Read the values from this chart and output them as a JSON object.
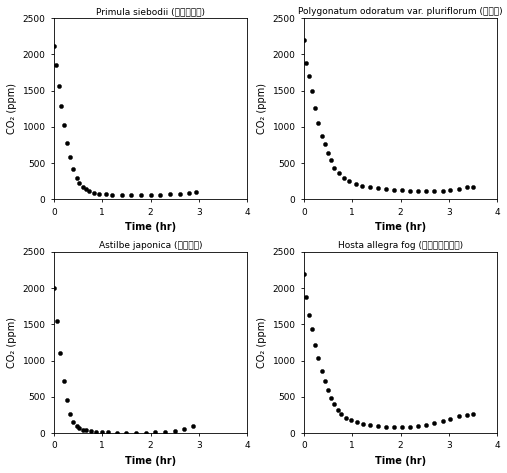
{
  "subplots": [
    {
      "title": "Primula siebodii (부주교잇이)",
      "xlabel": "Time (hr)",
      "ylabel": "CO₂ (ppm)",
      "xlim": [
        0,
        4.0
      ],
      "ylim": [
        0,
        2500
      ],
      "xticks": [
        0.0,
        1.0,
        2.0,
        3.0,
        4.0
      ],
      "yticks": [
        0,
        500,
        1000,
        1500,
        2000,
        2500
      ],
      "x": [
        0.0,
        0.05,
        0.1,
        0.15,
        0.2,
        0.27,
        0.33,
        0.4,
        0.47,
        0.53,
        0.6,
        0.67,
        0.73,
        0.83,
        0.93,
        1.07,
        1.2,
        1.4,
        1.6,
        1.8,
        2.0,
        2.2,
        2.4,
        2.6,
        2.8,
        2.95
      ],
      "y": [
        2120,
        1850,
        1560,
        1290,
        1020,
        780,
        590,
        420,
        290,
        230,
        175,
        145,
        115,
        95,
        80,
        70,
        60,
        55,
        55,
        55,
        60,
        65,
        70,
        75,
        90,
        105
      ]
    },
    {
      "title": "Polygonatum odoratum var. pluriflorum (둥굴레)",
      "xlabel": "Time (hr)",
      "ylabel": "CO₂ (ppm)",
      "xlim": [
        0,
        4.0
      ],
      "ylim": [
        0,
        2500
      ],
      "xticks": [
        0.0,
        1.0,
        2.0,
        3.0,
        4.0
      ],
      "yticks": [
        0,
        500,
        1000,
        1500,
        2000,
        2500
      ],
      "x": [
        0.0,
        0.05,
        0.1,
        0.17,
        0.23,
        0.3,
        0.37,
        0.43,
        0.5,
        0.57,
        0.63,
        0.73,
        0.83,
        0.93,
        1.07,
        1.2,
        1.37,
        1.53,
        1.7,
        1.87,
        2.03,
        2.2,
        2.37,
        2.53,
        2.7,
        2.87,
        3.03,
        3.2,
        3.37,
        3.5
      ],
      "y": [
        2200,
        1880,
        1700,
        1500,
        1260,
        1060,
        880,
        760,
        640,
        550,
        430,
        360,
        300,
        250,
        215,
        190,
        170,
        155,
        145,
        130,
        125,
        115,
        110,
        110,
        115,
        120,
        130,
        145,
        165,
        175
      ]
    },
    {
      "title": "Astilbe japonica (아스틸베)",
      "xlabel": "Time (hr)",
      "ylabel": "CO₂ (ppm)",
      "xlim": [
        0,
        4.0
      ],
      "ylim": [
        0,
        2500
      ],
      "xticks": [
        0.0,
        1.0,
        2.0,
        3.0,
        4.0
      ],
      "yticks": [
        0,
        500,
        1000,
        1500,
        2000,
        2500
      ],
      "x": [
        0.0,
        0.07,
        0.13,
        0.2,
        0.27,
        0.33,
        0.4,
        0.47,
        0.53,
        0.6,
        0.67,
        0.77,
        0.87,
        1.0,
        1.13,
        1.3,
        1.5,
        1.7,
        1.9,
        2.1,
        2.3,
        2.5,
        2.7,
        2.87
      ],
      "y": [
        2000,
        1540,
        1110,
        720,
        460,
        265,
        160,
        105,
        70,
        50,
        38,
        25,
        18,
        12,
        10,
        8,
        7,
        7,
        8,
        10,
        15,
        25,
        60,
        100
      ]
    },
    {
      "title": "Hosta allegra fog (노랑모닙비비추)",
      "xlabel": "Time (hr)",
      "ylabel": "CO₂ (ppm)",
      "xlim": [
        0,
        4.0
      ],
      "ylim": [
        0,
        2500
      ],
      "xticks": [
        0.0,
        1.0,
        2.0,
        3.0,
        4.0
      ],
      "yticks": [
        0,
        500,
        1000,
        1500,
        2000,
        2500
      ],
      "x": [
        0.0,
        0.05,
        0.1,
        0.17,
        0.23,
        0.3,
        0.37,
        0.43,
        0.5,
        0.57,
        0.63,
        0.7,
        0.77,
        0.87,
        0.97,
        1.1,
        1.23,
        1.37,
        1.53,
        1.7,
        1.87,
        2.03,
        2.2,
        2.37,
        2.53,
        2.7,
        2.87,
        3.03,
        3.2,
        3.37,
        3.5
      ],
      "y": [
        2200,
        1880,
        1630,
        1430,
        1220,
        1040,
        860,
        720,
        590,
        490,
        400,
        325,
        260,
        215,
        180,
        155,
        130,
        110,
        95,
        85,
        80,
        80,
        85,
        95,
        110,
        135,
        165,
        200,
        230,
        255,
        270
      ]
    }
  ],
  "marker": "o",
  "markersize": 3,
  "color": "black",
  "title_fontsize": 6.5,
  "label_fontsize": 7,
  "tick_fontsize": 6.5,
  "figure_bg": "#ffffff",
  "axes_bg": "#ffffff"
}
